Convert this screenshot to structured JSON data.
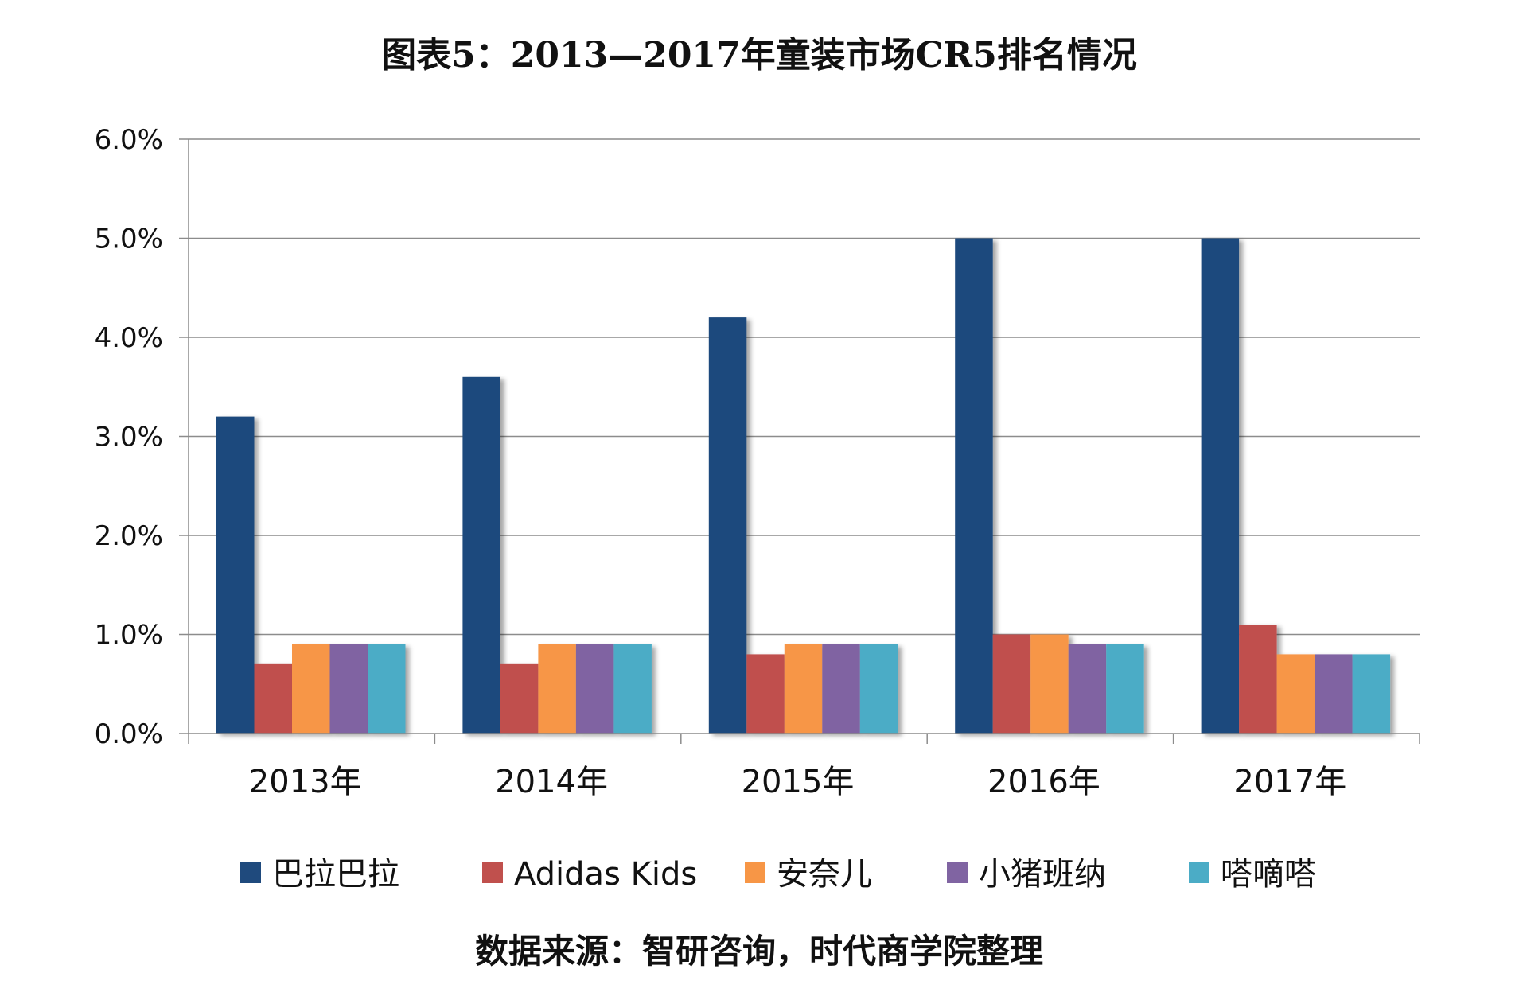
{
  "chart_data": {
    "type": "bar",
    "title": "图表5：2013—2017年童装市场CR5排名情况",
    "source": "数据来源：智研咨询，时代商学院整理",
    "categories": [
      "2013年",
      "2014年",
      "2015年",
      "2016年",
      "2017年"
    ],
    "series": [
      {
        "name": "巴拉巴拉",
        "color": "#1F4A7D",
        "values": [
          3.2,
          3.6,
          4.2,
          5.0,
          5.0
        ]
      },
      {
        "name": "Adidas Kids",
        "color": "#C0504D",
        "values": [
          0.7,
          0.7,
          0.8,
          1.0,
          1.1
        ]
      },
      {
        "name": "安奈儿",
        "color": "#F79646",
        "values": [
          0.9,
          0.9,
          0.9,
          1.0,
          0.8
        ]
      },
      {
        "name": "小猪班纳",
        "color": "#8064A2",
        "values": [
          0.9,
          0.9,
          0.9,
          0.9,
          0.8
        ]
      },
      {
        "name": "嗒嘀嗒",
        "color": "#4BACC6",
        "values": [
          0.9,
          0.9,
          0.9,
          0.9,
          0.8
        ]
      }
    ],
    "ylim": [
      0,
      6
    ],
    "yticks": [
      "0.0%",
      "1.0%",
      "2.0%",
      "3.0%",
      "4.0%",
      "5.0%",
      "6.0%"
    ],
    "unit": "%",
    "grid": true,
    "legend_position": "bottom"
  }
}
